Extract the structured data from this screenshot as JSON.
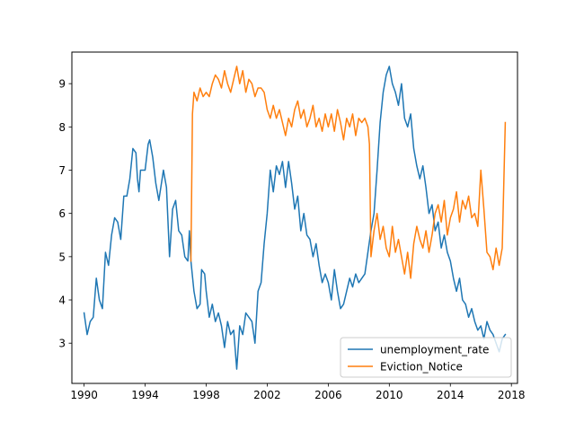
{
  "chart_data": {
    "type": "line",
    "title": "",
    "xlabel": "",
    "ylabel": "",
    "xlim": [
      1989.2,
      2018.4
    ],
    "ylim": [
      2.07,
      9.73
    ],
    "x_ticks": [
      1990,
      1994,
      1998,
      2002,
      2006,
      2010,
      2014,
      2018
    ],
    "y_ticks": [
      3,
      4,
      5,
      6,
      7,
      8,
      9
    ],
    "grid": false,
    "legend_position": "lower right",
    "series": [
      {
        "name": "unemployment_rate",
        "color": "#1f77b4",
        "points": [
          [
            1990.0,
            3.7
          ],
          [
            1990.2,
            3.2
          ],
          [
            1990.4,
            3.5
          ],
          [
            1990.6,
            3.6
          ],
          [
            1990.8,
            4.5
          ],
          [
            1991.0,
            4.0
          ],
          [
            1991.2,
            3.8
          ],
          [
            1991.4,
            5.1
          ],
          [
            1991.6,
            4.8
          ],
          [
            1991.8,
            5.5
          ],
          [
            1992.0,
            5.9
          ],
          [
            1992.2,
            5.8
          ],
          [
            1992.4,
            5.4
          ],
          [
            1992.6,
            6.4
          ],
          [
            1992.8,
            6.4
          ],
          [
            1993.0,
            6.8
          ],
          [
            1993.2,
            7.5
          ],
          [
            1993.4,
            7.4
          ],
          [
            1993.5,
            6.8
          ],
          [
            1993.6,
            6.5
          ],
          [
            1993.7,
            7.0
          ],
          [
            1994.0,
            7.0
          ],
          [
            1994.2,
            7.6
          ],
          [
            1994.3,
            7.7
          ],
          [
            1994.5,
            7.3
          ],
          [
            1994.7,
            6.7
          ],
          [
            1994.9,
            6.3
          ],
          [
            1995.2,
            7.0
          ],
          [
            1995.4,
            6.6
          ],
          [
            1995.6,
            5.0
          ],
          [
            1995.8,
            6.1
          ],
          [
            1996.0,
            6.3
          ],
          [
            1996.2,
            5.6
          ],
          [
            1996.4,
            5.5
          ],
          [
            1996.6,
            5.0
          ],
          [
            1996.8,
            4.9
          ],
          [
            1996.9,
            5.6
          ],
          [
            1997.0,
            4.9
          ],
          [
            1997.2,
            4.2
          ],
          [
            1997.4,
            3.8
          ],
          [
            1997.6,
            3.9
          ],
          [
            1997.7,
            4.7
          ],
          [
            1997.9,
            4.6
          ],
          [
            1998.0,
            4.2
          ],
          [
            1998.2,
            3.6
          ],
          [
            1998.4,
            3.9
          ],
          [
            1998.6,
            3.5
          ],
          [
            1998.8,
            3.7
          ],
          [
            1999.0,
            3.4
          ],
          [
            1999.2,
            2.9
          ],
          [
            1999.4,
            3.5
          ],
          [
            1999.6,
            3.2
          ],
          [
            1999.8,
            3.3
          ],
          [
            2000.0,
            2.4
          ],
          [
            2000.2,
            3.4
          ],
          [
            2000.4,
            3.2
          ],
          [
            2000.6,
            3.7
          ],
          [
            2000.8,
            3.6
          ],
          [
            2001.0,
            3.5
          ],
          [
            2001.2,
            3.0
          ],
          [
            2001.4,
            4.2
          ],
          [
            2001.6,
            4.4
          ],
          [
            2001.8,
            5.3
          ],
          [
            2002.0,
            6.0
          ],
          [
            2002.2,
            7.0
          ],
          [
            2002.4,
            6.5
          ],
          [
            2002.6,
            7.1
          ],
          [
            2002.8,
            6.9
          ],
          [
            2003.0,
            7.2
          ],
          [
            2003.2,
            6.6
          ],
          [
            2003.4,
            7.2
          ],
          [
            2003.6,
            6.7
          ],
          [
            2003.8,
            6.1
          ],
          [
            2004.0,
            6.4
          ],
          [
            2004.2,
            5.6
          ],
          [
            2004.4,
            6.0
          ],
          [
            2004.6,
            5.5
          ],
          [
            2004.8,
            5.4
          ],
          [
            2005.0,
            5.0
          ],
          [
            2005.2,
            5.3
          ],
          [
            2005.4,
            4.8
          ],
          [
            2005.6,
            4.4
          ],
          [
            2005.8,
            4.6
          ],
          [
            2006.0,
            4.4
          ],
          [
            2006.2,
            4.0
          ],
          [
            2006.4,
            4.7
          ],
          [
            2006.6,
            4.2
          ],
          [
            2006.8,
            3.8
          ],
          [
            2007.0,
            3.9
          ],
          [
            2007.2,
            4.2
          ],
          [
            2007.4,
            4.5
          ],
          [
            2007.6,
            4.3
          ],
          [
            2007.8,
            4.6
          ],
          [
            2008.0,
            4.4
          ],
          [
            2008.2,
            4.5
          ],
          [
            2008.4,
            4.6
          ],
          [
            2008.6,
            5.1
          ],
          [
            2008.8,
            5.6
          ],
          [
            2009.0,
            6.0
          ],
          [
            2009.2,
            7.0
          ],
          [
            2009.4,
            8.1
          ],
          [
            2009.6,
            8.8
          ],
          [
            2009.8,
            9.2
          ],
          [
            2010.0,
            9.4
          ],
          [
            2010.2,
            9.0
          ],
          [
            2010.4,
            8.8
          ],
          [
            2010.6,
            8.5
          ],
          [
            2010.8,
            9.0
          ],
          [
            2011.0,
            8.2
          ],
          [
            2011.2,
            8.0
          ],
          [
            2011.4,
            8.3
          ],
          [
            2011.6,
            7.5
          ],
          [
            2011.8,
            7.1
          ],
          [
            2012.0,
            6.8
          ],
          [
            2012.2,
            7.1
          ],
          [
            2012.4,
            6.6
          ],
          [
            2012.6,
            6.0
          ],
          [
            2012.8,
            6.2
          ],
          [
            2013.0,
            5.6
          ],
          [
            2013.2,
            5.8
          ],
          [
            2013.4,
            5.2
          ],
          [
            2013.6,
            5.5
          ],
          [
            2013.8,
            5.1
          ],
          [
            2014.0,
            4.9
          ],
          [
            2014.2,
            4.5
          ],
          [
            2014.4,
            4.2
          ],
          [
            2014.6,
            4.5
          ],
          [
            2014.8,
            4.0
          ],
          [
            2015.0,
            3.9
          ],
          [
            2015.2,
            3.6
          ],
          [
            2015.4,
            3.8
          ],
          [
            2015.6,
            3.5
          ],
          [
            2015.8,
            3.3
          ],
          [
            2016.0,
            3.4
          ],
          [
            2016.2,
            3.1
          ],
          [
            2016.4,
            3.5
          ],
          [
            2016.6,
            3.3
          ],
          [
            2016.8,
            3.2
          ],
          [
            2017.0,
            3.0
          ],
          [
            2017.2,
            2.8
          ],
          [
            2017.4,
            3.1
          ],
          [
            2017.6,
            3.2
          ]
        ]
      },
      {
        "name": "Eviction_Notice",
        "color": "#ff7f0e",
        "points": [
          [
            1997.0,
            4.9
          ],
          [
            1997.1,
            8.3
          ],
          [
            1997.2,
            8.8
          ],
          [
            1997.4,
            8.6
          ],
          [
            1997.6,
            8.9
          ],
          [
            1997.8,
            8.7
          ],
          [
            1998.0,
            8.8
          ],
          [
            1998.2,
            8.7
          ],
          [
            1998.4,
            9.0
          ],
          [
            1998.6,
            9.2
          ],
          [
            1998.8,
            9.1
          ],
          [
            1999.0,
            8.9
          ],
          [
            1999.2,
            9.3
          ],
          [
            1999.4,
            9.0
          ],
          [
            1999.6,
            8.8
          ],
          [
            1999.8,
            9.1
          ],
          [
            2000.0,
            9.4
          ],
          [
            2000.2,
            9.0
          ],
          [
            2000.4,
            9.3
          ],
          [
            2000.6,
            8.8
          ],
          [
            2000.8,
            9.1
          ],
          [
            2001.0,
            9.0
          ],
          [
            2001.2,
            8.7
          ],
          [
            2001.4,
            8.9
          ],
          [
            2001.6,
            8.9
          ],
          [
            2001.8,
            8.8
          ],
          [
            2002.0,
            8.4
          ],
          [
            2002.2,
            8.2
          ],
          [
            2002.4,
            8.5
          ],
          [
            2002.6,
            8.2
          ],
          [
            2002.8,
            8.4
          ],
          [
            2003.0,
            8.1
          ],
          [
            2003.2,
            7.8
          ],
          [
            2003.4,
            8.2
          ],
          [
            2003.6,
            8.0
          ],
          [
            2003.8,
            8.4
          ],
          [
            2004.0,
            8.6
          ],
          [
            2004.2,
            8.2
          ],
          [
            2004.4,
            8.4
          ],
          [
            2004.6,
            8.0
          ],
          [
            2004.8,
            8.2
          ],
          [
            2005.0,
            8.5
          ],
          [
            2005.2,
            8.0
          ],
          [
            2005.4,
            8.2
          ],
          [
            2005.6,
            7.9
          ],
          [
            2005.8,
            8.3
          ],
          [
            2006.0,
            8.0
          ],
          [
            2006.2,
            8.3
          ],
          [
            2006.4,
            7.9
          ],
          [
            2006.6,
            8.4
          ],
          [
            2006.8,
            8.1
          ],
          [
            2007.0,
            7.7
          ],
          [
            2007.2,
            8.2
          ],
          [
            2007.4,
            8.0
          ],
          [
            2007.6,
            8.3
          ],
          [
            2007.8,
            7.8
          ],
          [
            2008.0,
            8.2
          ],
          [
            2008.2,
            8.1
          ],
          [
            2008.4,
            8.2
          ],
          [
            2008.6,
            8.0
          ],
          [
            2008.7,
            7.6
          ],
          [
            2008.8,
            5.0
          ],
          [
            2009.0,
            5.6
          ],
          [
            2009.2,
            6.0
          ],
          [
            2009.4,
            5.4
          ],
          [
            2009.6,
            5.7
          ],
          [
            2009.8,
            5.2
          ],
          [
            2010.0,
            5.0
          ],
          [
            2010.2,
            5.7
          ],
          [
            2010.4,
            5.1
          ],
          [
            2010.6,
            5.4
          ],
          [
            2010.8,
            5.0
          ],
          [
            2011.0,
            4.6
          ],
          [
            2011.2,
            5.1
          ],
          [
            2011.4,
            4.5
          ],
          [
            2011.6,
            5.3
          ],
          [
            2011.8,
            5.7
          ],
          [
            2012.0,
            5.4
          ],
          [
            2012.2,
            5.2
          ],
          [
            2012.4,
            5.6
          ],
          [
            2012.6,
            5.1
          ],
          [
            2012.8,
            5.5
          ],
          [
            2013.0,
            6.0
          ],
          [
            2013.2,
            6.2
          ],
          [
            2013.4,
            5.8
          ],
          [
            2013.6,
            6.3
          ],
          [
            2013.8,
            5.5
          ],
          [
            2014.0,
            5.9
          ],
          [
            2014.2,
            6.1
          ],
          [
            2014.4,
            6.5
          ],
          [
            2014.6,
            5.8
          ],
          [
            2014.8,
            6.3
          ],
          [
            2015.0,
            6.1
          ],
          [
            2015.2,
            6.4
          ],
          [
            2015.4,
            5.9
          ],
          [
            2015.6,
            6.0
          ],
          [
            2015.8,
            5.7
          ],
          [
            2016.0,
            7.0
          ],
          [
            2016.2,
            6.1
          ],
          [
            2016.4,
            5.1
          ],
          [
            2016.6,
            5.0
          ],
          [
            2016.8,
            4.7
          ],
          [
            2017.0,
            5.2
          ],
          [
            2017.2,
            4.8
          ],
          [
            2017.4,
            5.2
          ],
          [
            2017.6,
            8.1
          ]
        ]
      }
    ]
  }
}
